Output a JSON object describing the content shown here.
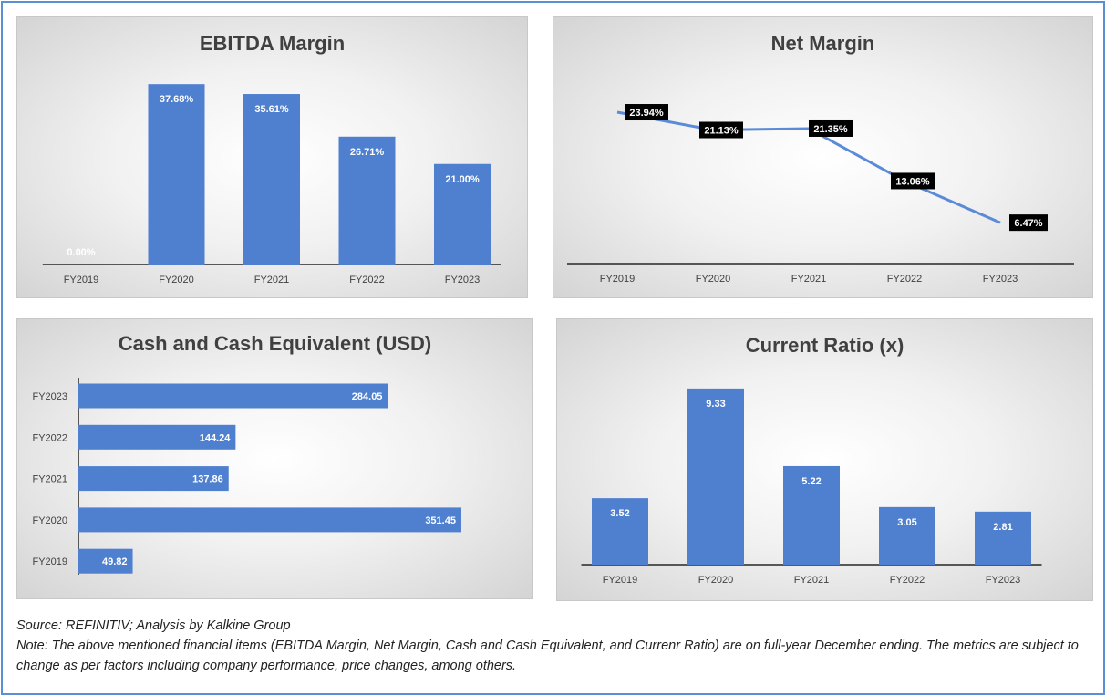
{
  "chart_data": [
    {
      "id": "ebitda",
      "type": "bar",
      "title": "EBITDA Margin",
      "categories": [
        "FY2019",
        "FY2020",
        "FY2021",
        "FY2022",
        "FY2023"
      ],
      "values": [
        0.0,
        37.68,
        35.61,
        26.71,
        21.0
      ],
      "labels": [
        "0.00%",
        "37.68%",
        "35.61%",
        "26.71%",
        "21.00%"
      ],
      "ylim": [
        0,
        40
      ],
      "color": "#4f7fcf",
      "grid": false
    },
    {
      "id": "net",
      "type": "line",
      "title": "Net Margin",
      "categories": [
        "FY2019",
        "FY2020",
        "FY2021",
        "FY2022",
        "FY2023"
      ],
      "values": [
        23.94,
        21.13,
        21.35,
        13.06,
        6.47
      ],
      "labels": [
        "23.94%",
        "21.13%",
        "21.35%",
        "13.06%",
        "6.47%"
      ],
      "ylim": [
        0,
        30
      ],
      "color": "#5b8bd8",
      "grid": false
    },
    {
      "id": "cash",
      "type": "bar",
      "orientation": "horizontal",
      "title": "Cash and Cash Equivalent (USD)",
      "categories": [
        "FY2023",
        "FY2022",
        "FY2021",
        "FY2020",
        "FY2019"
      ],
      "values": [
        284.05,
        144.24,
        137.86,
        351.45,
        49.82
      ],
      "labels": [
        "284.05",
        "144.24",
        "137.86",
        "351.45",
        "49.82"
      ],
      "xlim": [
        0,
        400
      ],
      "color": "#4f7fcf",
      "grid": false
    },
    {
      "id": "current",
      "type": "bar",
      "title": "Current Ratio (x)",
      "categories": [
        "FY2019",
        "FY2020",
        "FY2021",
        "FY2022",
        "FY2023"
      ],
      "values": [
        3.52,
        9.33,
        5.22,
        3.05,
        2.81
      ],
      "labels": [
        "3.52",
        "9.33",
        "5.22",
        "3.05",
        "2.81"
      ],
      "ylim": [
        0,
        10
      ],
      "color": "#4f7fcf",
      "grid": false
    }
  ],
  "footer": {
    "source": "Source: REFINITIV; Analysis by Kalkine Group",
    "note": "Note: The above mentioned financial items (EBITDA Margin, Net Margin, Cash and Cash Equivalent, and Currenr Ratio) are on full-year December ending. The metrics are subject to change as per factors including company performance, price changes, among others."
  }
}
